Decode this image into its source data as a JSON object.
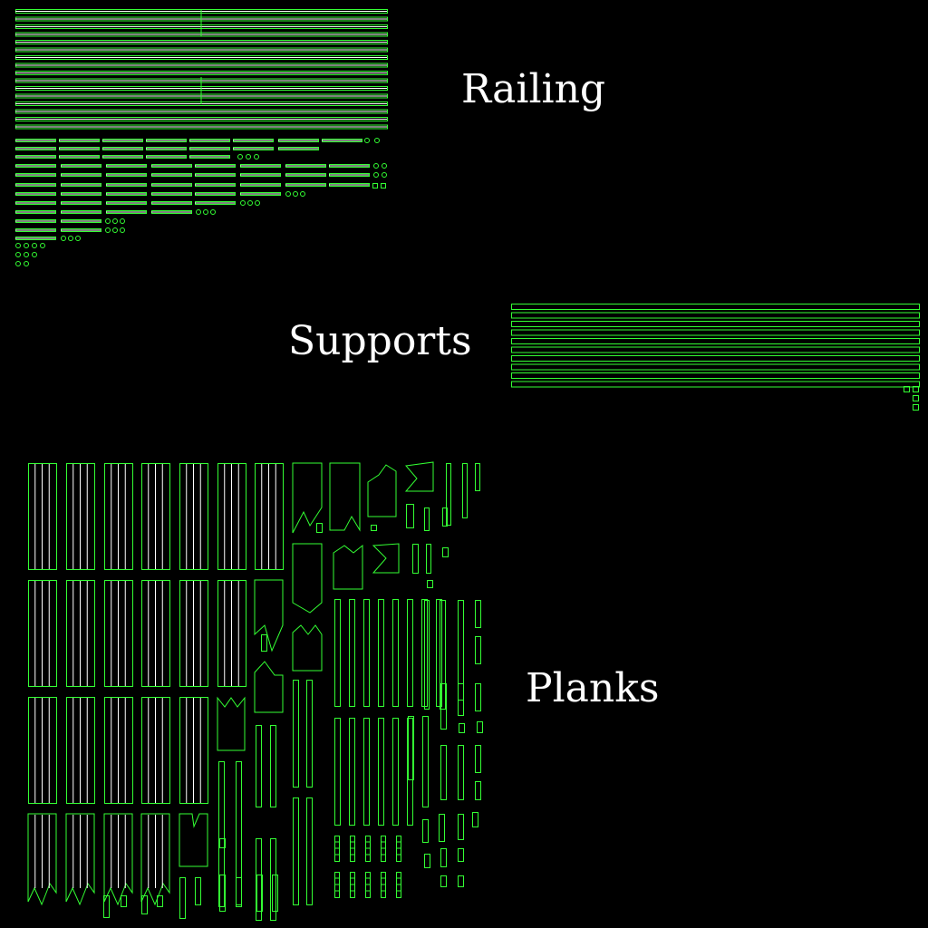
{
  "colors": {
    "background": "#000000",
    "outline": "#33ff33",
    "text": "#ffffff"
  },
  "labels": {
    "railing": "Railing",
    "supports": "Supports",
    "planks": "Planks"
  }
}
